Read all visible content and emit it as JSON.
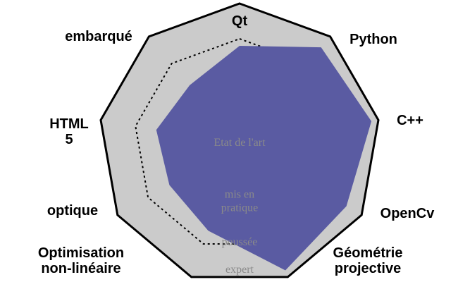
{
  "chart_data": {
    "type": "radar",
    "axes": [
      "Qt",
      "Python",
      "C++",
      "OpenCv",
      "Géométrie projective",
      "Optimisation non-linéaire",
      "optique",
      "HTML 5",
      "embarqué"
    ],
    "axis_label_lines": [
      [
        "Qt"
      ],
      [
        "Python"
      ],
      [
        "C++"
      ],
      [
        "OpenCv"
      ],
      [
        "Géométrie",
        "projective"
      ],
      [
        "Optimisation",
        "non-linéaire"
      ],
      [
        "optique"
      ],
      [
        "HTML",
        "5"
      ],
      [
        "embarqué"
      ]
    ],
    "levels": [
      "Etat de l'art",
      "mis en pratique",
      "poussée",
      "expert"
    ],
    "level_label_lines": [
      [
        "Etat de l'art"
      ],
      [
        "mis en",
        "pratique"
      ],
      [
        "poussée"
      ],
      [
        "expert"
      ]
    ],
    "scale_max": 4,
    "values": [
      2.8,
      3.6,
      3.8,
      3.5,
      3.8,
      2.6,
      2.3,
      2.4,
      2.2
    ],
    "colors": {
      "background_polygon": "#cbcbcb",
      "background_outline": "#000000",
      "grid_lines": "#000000",
      "data_fill": "#5a5ba2",
      "level_text": "#8a8a8a"
    },
    "grid": true,
    "legend": "none"
  }
}
